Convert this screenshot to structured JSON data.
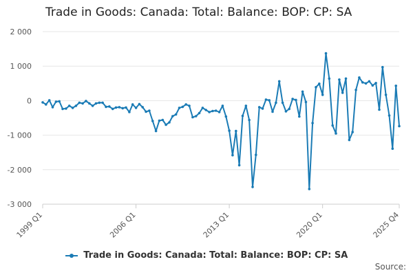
{
  "chart_data": {
    "type": "line",
    "title": "Trade in Goods: Canada: Total: Balance: BOP: CP: SA",
    "xlabel": "",
    "ylabel": "",
    "ylim": [
      -3000,
      2000
    ],
    "y_ticks": [
      2000,
      1000,
      0,
      -1000,
      -2000,
      -3000
    ],
    "y_tick_labels": [
      "2 000",
      "1 000",
      "0",
      "-1 000",
      "-2 000",
      "-3 000"
    ],
    "x_tick_labels": [
      "1999 Q1",
      "2006 Q1",
      "2013 Q1",
      "2020 Q1",
      "2025 Q4"
    ],
    "x_tick_positions": [
      0,
      28,
      56,
      84,
      107
    ],
    "series": [
      {
        "name": "Trade in Goods: Canada: Total: Balance: BOP: CP: SA",
        "color": "#1a7bb5",
        "values": [
          -50,
          -110,
          10,
          -190,
          -30,
          -20,
          -240,
          -230,
          -150,
          -210,
          -150,
          -60,
          -80,
          -10,
          -80,
          -150,
          -80,
          -60,
          -60,
          -180,
          -170,
          -240,
          -200,
          -190,
          -220,
          -200,
          -330,
          -110,
          -210,
          -100,
          -190,
          -320,
          -290,
          -590,
          -880,
          -580,
          -560,
          -700,
          -630,
          -450,
          -400,
          -210,
          -180,
          -110,
          -150,
          -480,
          -450,
          -360,
          -210,
          -270,
          -330,
          -300,
          -290,
          -330,
          -150,
          -460,
          -870,
          -1580,
          -880,
          -1870,
          -440,
          -150,
          -560,
          -2500,
          -1570,
          -190,
          -230,
          30,
          10,
          -320,
          -60,
          560,
          -60,
          -310,
          -240,
          50,
          20,
          -460,
          260,
          -40,
          -2560,
          -650,
          390,
          490,
          170,
          1370,
          640,
          -720,
          -950,
          610,
          230,
          640,
          -1140,
          -910,
          310,
          670,
          530,
          500,
          560,
          440,
          510,
          -260,
          970,
          170,
          -430,
          -1390,
          430,
          -740
        ]
      }
    ]
  },
  "legend": {
    "label": "Trade in Goods: Canada: Total: Balance: BOP: CP: SA"
  },
  "source": {
    "label": "Source:"
  }
}
